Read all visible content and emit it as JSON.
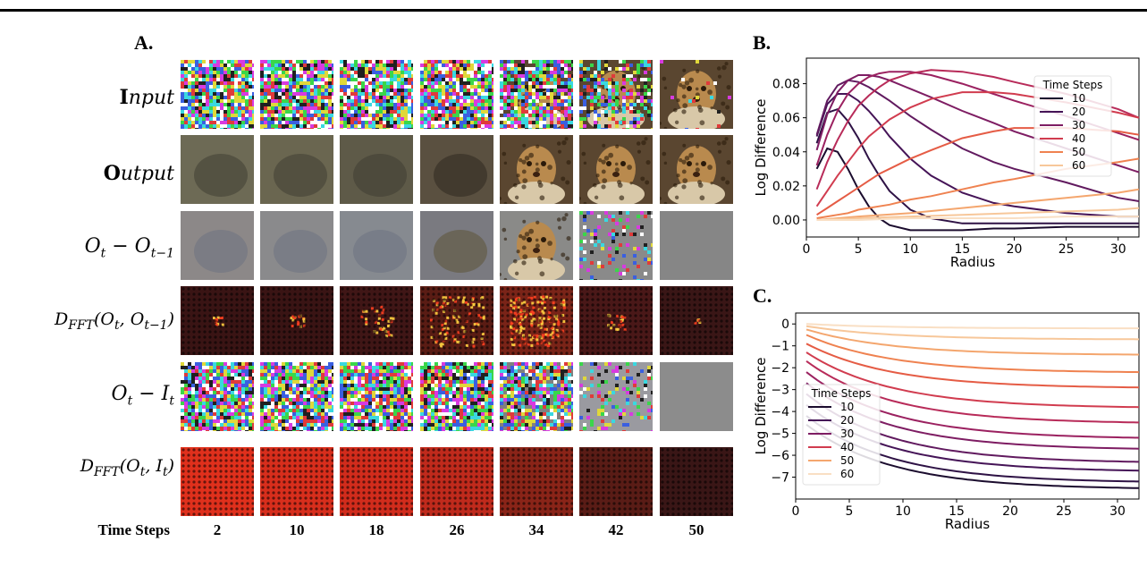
{
  "panel_a": {
    "letter": "A.",
    "row_labels": [
      {
        "bold": "I",
        "rest": "nput"
      },
      {
        "bold": "O",
        "rest": "utput"
      },
      {
        "plain": "O",
        "sub1": "t",
        "mid": " − O",
        "sub2": "t−1"
      },
      {
        "plain": "D",
        "sub1": "FFT",
        "mid": "(O",
        "sub2": "t",
        "tail": ", O",
        "sub3": "t−1",
        "end": ")"
      },
      {
        "plain": "O",
        "sub1": "t",
        "mid": " − I",
        "sub2": "t"
      },
      {
        "plain": "D",
        "sub1": "FFT",
        "mid": "(O",
        "sub2": "t",
        "tail": ", I",
        "sub3": "t",
        "end": ")"
      }
    ],
    "time_steps_label": "Time Steps",
    "time_steps": [
      "2",
      "10",
      "18",
      "26",
      "34",
      "42",
      "50"
    ]
  },
  "chart_data": [
    {
      "type": "line",
      "panel": "B.",
      "xlabel": "Radius",
      "ylabel": "Log Difference",
      "xlim": [
        0,
        32
      ],
      "ylim": [
        -0.01,
        0.095
      ],
      "xticks": [
        "0",
        "5",
        "10",
        "15",
        "20",
        "25",
        "30"
      ],
      "yticks": [
        "0.00",
        "0.02",
        "0.04",
        "0.06",
        "0.08"
      ],
      "legend_title": "Time Steps",
      "legend_position": "top-right",
      "series": [
        {
          "name": "10",
          "color": "#1b0c2e",
          "x": [
            1,
            2,
            3,
            4,
            5,
            6,
            7,
            8,
            10,
            12,
            15,
            18,
            20,
            25,
            30,
            32
          ],
          "y": [
            0.03,
            0.042,
            0.04,
            0.03,
            0.018,
            0.008,
            0.001,
            -0.003,
            -0.006,
            -0.006,
            -0.006,
            -0.005,
            -0.005,
            -0.004,
            -0.004,
            -0.004
          ]
        },
        {
          "name": "",
          "color": "#2e1245",
          "x": [
            1,
            2,
            3,
            4,
            5,
            6,
            7,
            8,
            10,
            12,
            15,
            18,
            20,
            25,
            30,
            32
          ],
          "y": [
            0.045,
            0.063,
            0.065,
            0.058,
            0.048,
            0.036,
            0.026,
            0.017,
            0.006,
            0.001,
            -0.002,
            -0.002,
            -0.002,
            -0.002,
            -0.002,
            -0.002
          ]
        },
        {
          "name": "20",
          "color": "#451457",
          "x": [
            1,
            2,
            3,
            4,
            5,
            6,
            7,
            8,
            10,
            12,
            15,
            18,
            20,
            25,
            30,
            32
          ],
          "y": [
            0.049,
            0.068,
            0.074,
            0.074,
            0.07,
            0.064,
            0.057,
            0.049,
            0.036,
            0.026,
            0.016,
            0.01,
            0.008,
            0.004,
            0.002,
            0.002
          ]
        },
        {
          "name": "",
          "color": "#611a5f",
          "x": [
            1,
            2,
            3,
            4,
            5,
            6,
            7,
            8,
            10,
            12,
            15,
            18,
            20,
            25,
            30,
            32
          ],
          "y": [
            0.05,
            0.07,
            0.079,
            0.082,
            0.081,
            0.078,
            0.074,
            0.07,
            0.061,
            0.053,
            0.042,
            0.034,
            0.03,
            0.022,
            0.013,
            0.011
          ]
        },
        {
          "name": "30",
          "color": "#7e1d63",
          "x": [
            1,
            2,
            3,
            4,
            5,
            6,
            7,
            8,
            10,
            12,
            15,
            18,
            20,
            25,
            30,
            32
          ],
          "y": [
            0.041,
            0.062,
            0.075,
            0.082,
            0.085,
            0.085,
            0.084,
            0.082,
            0.077,
            0.072,
            0.064,
            0.057,
            0.052,
            0.042,
            0.032,
            0.028
          ]
        },
        {
          "name": "",
          "color": "#9b2160",
          "x": [
            1,
            2,
            3,
            4,
            5,
            6,
            7,
            8,
            10,
            12,
            15,
            18,
            20,
            25,
            30,
            32
          ],
          "y": [
            0.032,
            0.05,
            0.064,
            0.074,
            0.08,
            0.084,
            0.086,
            0.087,
            0.087,
            0.085,
            0.08,
            0.074,
            0.07,
            0.061,
            0.051,
            0.047
          ]
        },
        {
          "name": "",
          "color": "#b82b59",
          "x": [
            1,
            2,
            3,
            4,
            5,
            6,
            7,
            8,
            10,
            12,
            15,
            18,
            20,
            25,
            30,
            32
          ],
          "y": [
            0.018,
            0.034,
            0.047,
            0.058,
            0.067,
            0.073,
            0.078,
            0.082,
            0.086,
            0.088,
            0.087,
            0.084,
            0.081,
            0.074,
            0.065,
            0.06
          ]
        },
        {
          "name": "40",
          "color": "#d13c4f",
          "x": [
            1,
            2,
            3,
            4,
            5,
            6,
            7,
            8,
            10,
            12,
            15,
            18,
            20,
            25,
            30,
            32
          ],
          "y": [
            0.008,
            0.017,
            0.026,
            0.034,
            0.042,
            0.049,
            0.054,
            0.059,
            0.066,
            0.071,
            0.075,
            0.075,
            0.074,
            0.069,
            0.063,
            0.06
          ]
        },
        {
          "name": "",
          "color": "#e55c45",
          "x": [
            1,
            2,
            3,
            4,
            5,
            6,
            7,
            8,
            10,
            12,
            15,
            18,
            20,
            25,
            30,
            32
          ],
          "y": [
            0.003,
            0.007,
            0.011,
            0.015,
            0.019,
            0.023,
            0.027,
            0.03,
            0.036,
            0.041,
            0.048,
            0.052,
            0.054,
            0.054,
            0.052,
            0.05
          ]
        },
        {
          "name": "50",
          "color": "#ef8250",
          "x": [
            1,
            2,
            3,
            4,
            5,
            6,
            7,
            8,
            10,
            12,
            15,
            18,
            20,
            25,
            30,
            32
          ],
          "y": [
            0.001,
            0.002,
            0.003,
            0.004,
            0.006,
            0.007,
            0.008,
            0.009,
            0.012,
            0.014,
            0.018,
            0.022,
            0.024,
            0.03,
            0.034,
            0.036
          ]
        },
        {
          "name": "",
          "color": "#f4a66e",
          "x": [
            1,
            5,
            10,
            15,
            20,
            25,
            30,
            32
          ],
          "y": [
            0.0,
            0.002,
            0.004,
            0.007,
            0.01,
            0.013,
            0.016,
            0.018
          ]
        },
        {
          "name": "60",
          "color": "#f7c79a",
          "x": [
            1,
            5,
            10,
            15,
            20,
            25,
            30,
            32
          ],
          "y": [
            0.0,
            0.001,
            0.002,
            0.003,
            0.004,
            0.005,
            0.006,
            0.007
          ]
        },
        {
          "name": "",
          "color": "#f9dfc4",
          "x": [
            1,
            5,
            10,
            15,
            20,
            25,
            30,
            32
          ],
          "y": [
            0.0,
            0.0,
            0.001,
            0.001,
            0.001,
            0.002,
            0.002,
            0.002
          ]
        }
      ]
    },
    {
      "type": "line",
      "panel": "C.",
      "xlabel": "Radius",
      "ylabel": "Log Difference",
      "xlim": [
        0,
        32
      ],
      "ylim": [
        -8,
        0.5
      ],
      "xticks": [
        "0",
        "5",
        "10",
        "15",
        "20",
        "25",
        "30"
      ],
      "yticks": [
        "0",
        "−1",
        "−2",
        "−3",
        "−4",
        "−5",
        "−6",
        "−7"
      ],
      "legend_title": "Time Steps",
      "legend_position": "lower-left",
      "series": [
        {
          "name": "10",
          "color": "#1b0c2e",
          "start": -4.6,
          "end": -7.5
        },
        {
          "name": "",
          "color": "#2e1245",
          "start": -4.2,
          "end": -7.2
        },
        {
          "name": "20",
          "color": "#451457",
          "start": -3.7,
          "end": -6.7
        },
        {
          "name": "",
          "color": "#611a5f",
          "start": -3.2,
          "end": -6.3
        },
        {
          "name": "30",
          "color": "#7e1d63",
          "start": -2.7,
          "end": -5.7
        },
        {
          "name": "",
          "color": "#9b2160",
          "start": -2.2,
          "end": -5.2
        },
        {
          "name": "",
          "color": "#b82b59",
          "start": -1.7,
          "end": -4.5
        },
        {
          "name": "40",
          "color": "#d13c4f",
          "start": -1.3,
          "end": -3.8
        },
        {
          "name": "",
          "color": "#e55c45",
          "start": -0.9,
          "end": -2.9
        },
        {
          "name": "",
          "color": "#ef8250",
          "start": -0.5,
          "end": -2.2
        },
        {
          "name": "50",
          "color": "#f4a66e",
          "start": -0.25,
          "end": -1.4
        },
        {
          "name": "",
          "color": "#f7c79a",
          "start": -0.1,
          "end": -0.7
        },
        {
          "name": "60",
          "color": "#f9dfc4",
          "start": 0.0,
          "end": -0.2
        }
      ]
    }
  ]
}
